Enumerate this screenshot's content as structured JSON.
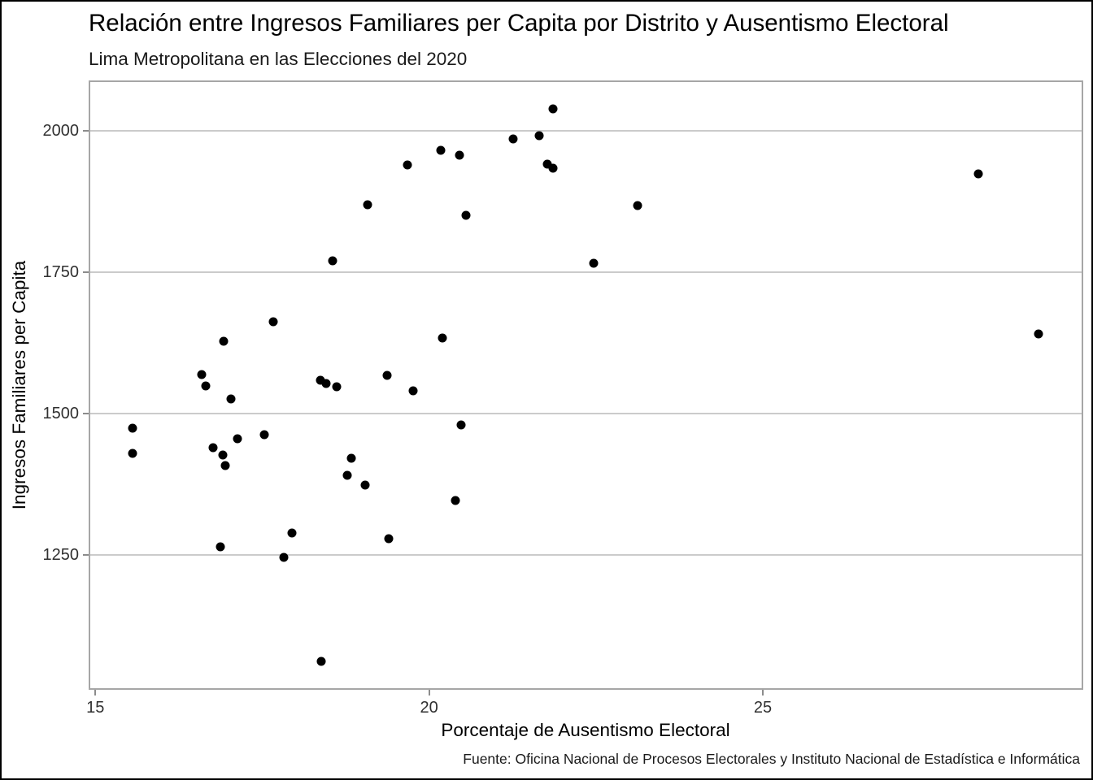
{
  "chart_data": {
    "type": "scatter",
    "title": "Relación entre Ingresos Familiares per Capita por Distrito y Ausentismo Electoral",
    "subtitle": "Lima Metropolitana en las Elecciones del 2020",
    "xlabel": "Porcentaje de Ausentismo Electoral",
    "ylabel": "Ingresos Familiares per Capita",
    "caption": "Fuente: Oficina Nacional de Procesos Electorales y Instituto Nacional de Estadística e Informática",
    "x_ticks": [
      15,
      20,
      25
    ],
    "y_ticks": [
      1250,
      1500,
      1750,
      2000
    ],
    "xlim": [
      14.9,
      29.8
    ],
    "ylim": [
      1011,
      2089
    ],
    "grid": "horizontal-major-only",
    "legend": "none",
    "point_color": "#000000",
    "grid_color": "#cbcbcb",
    "panel_border_color": "#a6a6a6",
    "tick_color": "#8c8c8c",
    "points": [
      [
        15.56,
        1474
      ],
      [
        15.56,
        1429
      ],
      [
        16.59,
        1569
      ],
      [
        16.66,
        1549
      ],
      [
        16.77,
        1440
      ],
      [
        16.87,
        1264
      ],
      [
        16.91,
        1426
      ],
      [
        16.92,
        1627
      ],
      [
        16.95,
        1407
      ],
      [
        17.03,
        1526
      ],
      [
        17.13,
        1455
      ],
      [
        17.53,
        1463
      ],
      [
        17.66,
        1662
      ],
      [
        17.83,
        1246
      ],
      [
        17.94,
        1288
      ],
      [
        18.37,
        1559
      ],
      [
        18.38,
        1061
      ],
      [
        18.46,
        1553
      ],
      [
        18.56,
        1770
      ],
      [
        18.62,
        1547
      ],
      [
        18.78,
        1390
      ],
      [
        18.84,
        1421
      ],
      [
        19.04,
        1373
      ],
      [
        19.08,
        1869
      ],
      [
        19.37,
        1567
      ],
      [
        19.4,
        1279
      ],
      [
        19.68,
        1940
      ],
      [
        19.76,
        1540
      ],
      [
        20.18,
        1966
      ],
      [
        20.2,
        1633
      ],
      [
        20.39,
        1346
      ],
      [
        20.46,
        1957
      ],
      [
        20.48,
        1480
      ],
      [
        20.55,
        1850
      ],
      [
        21.26,
        1986
      ],
      [
        21.65,
        1991
      ],
      [
        21.77,
        1941
      ],
      [
        21.86,
        1934
      ],
      [
        21.86,
        2038
      ],
      [
        22.47,
        1765
      ],
      [
        23.12,
        1868
      ],
      [
        28.23,
        1924
      ],
      [
        29.13,
        1640
      ]
    ]
  }
}
